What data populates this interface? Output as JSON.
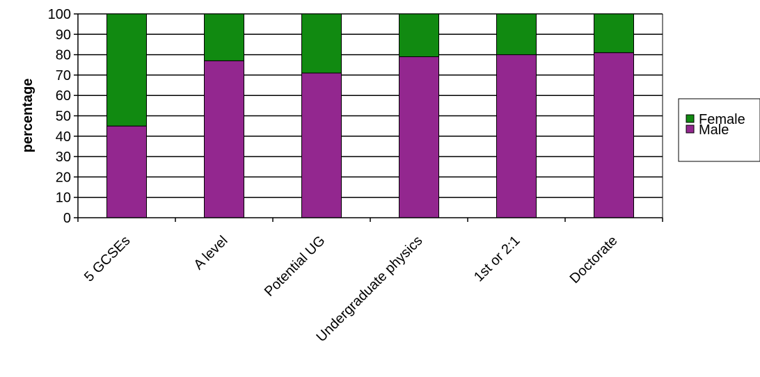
{
  "chart_data": {
    "type": "bar",
    "stacked": true,
    "categories": [
      "5 GCSEs",
      "A level",
      "Potential UG",
      "Undergraduate physics",
      "1st or 2:1",
      "Doctorate"
    ],
    "series": [
      {
        "name": "Male",
        "color": "#93278F",
        "values": [
          45,
          77,
          71,
          79,
          80,
          81
        ]
      },
      {
        "name": "Female",
        "color": "#118A11",
        "values": [
          55,
          23,
          29,
          21,
          20,
          19
        ]
      }
    ],
    "title": "",
    "xlabel": "",
    "ylabel": "percentage",
    "ylim": [
      0,
      100
    ],
    "yticks": [
      0,
      10,
      20,
      30,
      40,
      50,
      60,
      70,
      80,
      90,
      100
    ],
    "grid": true,
    "legend": {
      "position": "right",
      "order": [
        "Female",
        "Male"
      ]
    }
  }
}
